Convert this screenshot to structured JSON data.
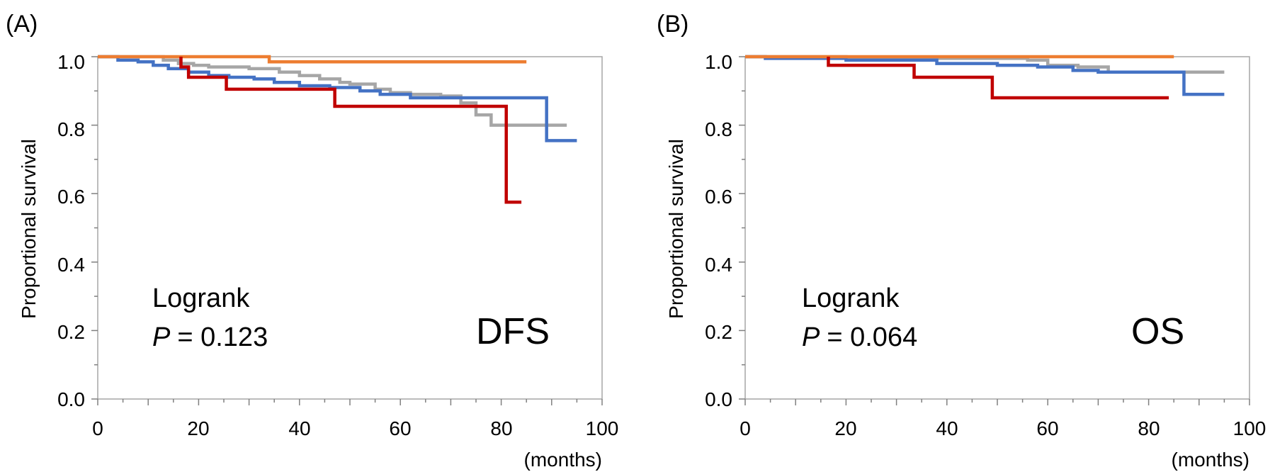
{
  "chart_data": [
    {
      "type": "line",
      "panel_label": "(A)",
      "ylabel": "Proportional survival",
      "xlabel": "(months)",
      "xlim": [
        0,
        100
      ],
      "ylim": [
        0.0,
        1.0
      ],
      "x_ticks": [
        "0",
        "20",
        "40",
        "60",
        "80",
        "100"
      ],
      "y_ticks": [
        "0.0",
        "0.2",
        "0.4",
        "0.6",
        "0.8",
        "1.0"
      ],
      "annotation_line1": "Logrank",
      "annotation_p_symbol": "P",
      "annotation_p_value": "= 0.123",
      "endpoint": "DFS",
      "grid": false,
      "series": [
        {
          "color": "#a6a6a6",
          "steps": [
            [
              0,
              1.0
            ],
            [
              13,
              0.99
            ],
            [
              16,
              0.98
            ],
            [
              19,
              0.975
            ],
            [
              22,
              0.97
            ],
            [
              30,
              0.965
            ],
            [
              36,
              0.955
            ],
            [
              40,
              0.945
            ],
            [
              44,
              0.935
            ],
            [
              48,
              0.925
            ],
            [
              50,
              0.92
            ],
            [
              55,
              0.905
            ],
            [
              58,
              0.895
            ],
            [
              62,
              0.89
            ],
            [
              68,
              0.885
            ],
            [
              72,
              0.865
            ],
            [
              75,
              0.83
            ],
            [
              78,
              0.8
            ],
            [
              93,
              0.8
            ]
          ]
        },
        {
          "color": "#4472c4",
          "steps": [
            [
              0,
              1.0
            ],
            [
              4,
              0.99
            ],
            [
              8,
              0.985
            ],
            [
              11,
              0.975
            ],
            [
              14,
              0.965
            ],
            [
              18,
              0.955
            ],
            [
              22,
              0.945
            ],
            [
              26,
              0.94
            ],
            [
              31,
              0.935
            ],
            [
              35,
              0.925
            ],
            [
              40,
              0.915
            ],
            [
              46,
              0.91
            ],
            [
              52,
              0.9
            ],
            [
              56,
              0.89
            ],
            [
              62,
              0.88
            ],
            [
              75,
              0.88
            ],
            [
              89,
              0.88
            ],
            [
              89,
              0.755
            ],
            [
              95,
              0.755
            ]
          ]
        },
        {
          "color": "#ed7d31",
          "steps": [
            [
              0,
              1.0
            ],
            [
              34,
              1.0
            ],
            [
              34,
              0.985
            ],
            [
              85,
              0.985
            ]
          ]
        },
        {
          "color": "#c00000",
          "steps": [
            [
              16.5,
              1.0
            ],
            [
              16.5,
              0.97
            ],
            [
              18,
              0.97
            ],
            [
              18,
              0.94
            ],
            [
              25.5,
              0.94
            ],
            [
              25.5,
              0.905
            ],
            [
              47,
              0.905
            ],
            [
              47,
              0.855
            ],
            [
              81,
              0.855
            ],
            [
              81,
              0.575
            ],
            [
              84,
              0.575
            ]
          ]
        }
      ]
    },
    {
      "type": "line",
      "panel_label": "(B)",
      "ylabel": "Proportional survival",
      "xlabel": "(months)",
      "xlim": [
        0,
        100
      ],
      "ylim": [
        0.0,
        1.0
      ],
      "x_ticks": [
        "0",
        "20",
        "40",
        "60",
        "80",
        "100"
      ],
      "y_ticks": [
        "0.0",
        "0.2",
        "0.4",
        "0.6",
        "0.8",
        "1.0"
      ],
      "annotation_line1": "Logrank",
      "annotation_p_symbol": "P",
      "annotation_p_value": "= 0.064",
      "endpoint": "OS",
      "grid": false,
      "series": [
        {
          "color": "#a6a6a6",
          "steps": [
            [
              0,
              1.0
            ],
            [
              20,
              0.995
            ],
            [
              40,
              0.995
            ],
            [
              56,
              0.99
            ],
            [
              60,
              0.975
            ],
            [
              66,
              0.97
            ],
            [
              72,
              0.955
            ],
            [
              95,
              0.955
            ]
          ]
        },
        {
          "color": "#4472c4",
          "steps": [
            [
              0,
              1.0
            ],
            [
              4,
              0.995
            ],
            [
              20,
              0.99
            ],
            [
              38,
              0.98
            ],
            [
              50,
              0.975
            ],
            [
              58,
              0.97
            ],
            [
              65,
              0.96
            ],
            [
              70,
              0.955
            ],
            [
              86,
              0.955
            ],
            [
              87,
              0.955
            ],
            [
              87,
              0.89
            ],
            [
              95,
              0.89
            ]
          ]
        },
        {
          "color": "#ed7d31",
          "steps": [
            [
              0,
              1.0
            ],
            [
              85,
              1.0
            ]
          ]
        },
        {
          "color": "#c00000",
          "steps": [
            [
              16.5,
              1.0
            ],
            [
              16.5,
              0.975
            ],
            [
              33.5,
              0.975
            ],
            [
              33.5,
              0.94
            ],
            [
              49,
              0.94
            ],
            [
              49,
              0.88
            ],
            [
              84,
              0.88
            ]
          ]
        }
      ]
    }
  ]
}
